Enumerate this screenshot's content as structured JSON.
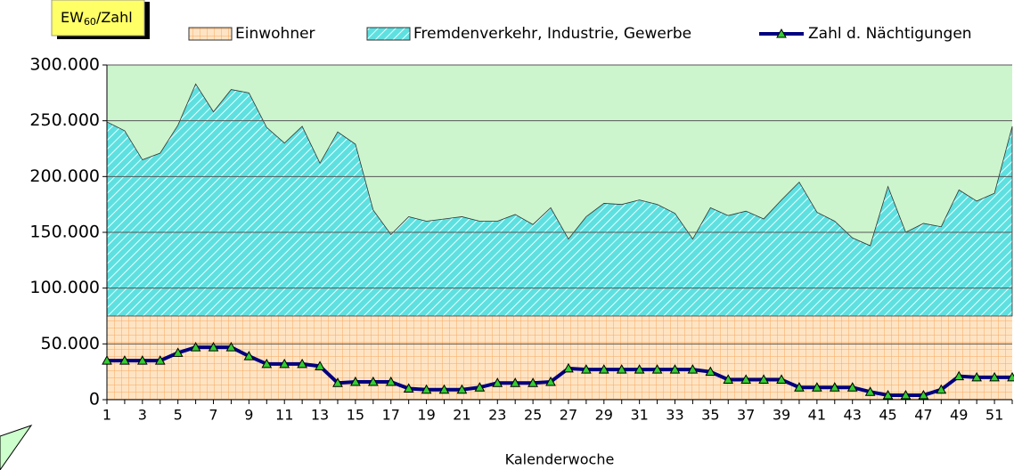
{
  "chart_data": {
    "type": "stacked-area-line",
    "y_label": {
      "main": "EW",
      "sub": "60",
      "tail": "/Zahl"
    },
    "x_label": "Kalenderwoche",
    "categories": [
      "1",
      null,
      "3",
      null,
      "5",
      null,
      "7",
      null,
      "9",
      null,
      "11",
      null,
      "13",
      null,
      "15",
      null,
      "17",
      null,
      "19",
      null,
      "21",
      null,
      "23",
      null,
      "25",
      null,
      "27",
      null,
      "29",
      null,
      "31",
      null,
      "33",
      null,
      "35",
      null,
      "37",
      null,
      "39",
      null,
      "41",
      null,
      "43",
      null,
      "45",
      null,
      "47",
      null,
      "49",
      null,
      "51",
      null
    ],
    "series": [
      {
        "name": "Einwohner",
        "color": "#ffd9b3",
        "kind": "area",
        "values": [
          75000,
          75000,
          75000,
          75000,
          75000,
          75000,
          75000,
          75000,
          75000,
          75000,
          75000,
          75000,
          75000,
          75000,
          75000,
          75000,
          75000,
          75000,
          75000,
          75000,
          75000,
          75000,
          75000,
          75000,
          75000,
          75000,
          75000,
          75000,
          75000,
          75000,
          75000,
          75000,
          75000,
          75000,
          75000,
          75000,
          75000,
          75000,
          75000,
          75000,
          75000,
          75000,
          75000,
          75000,
          75000,
          75000,
          75000,
          75000,
          75000,
          75000,
          75000,
          75000
        ]
      },
      {
        "name": "Fremdenverkehr, Industrie, Gewerbe",
        "color": "#5ee0e0",
        "kind": "area",
        "values": [
          174000,
          166000,
          140000,
          146000,
          171000,
          208000,
          183000,
          203000,
          200000,
          169000,
          155000,
          170000,
          137000,
          165000,
          154000,
          95000,
          73000,
          89000,
          85000,
          87000,
          89000,
          85000,
          85000,
          91000,
          82000,
          97000,
          69000,
          89000,
          101000,
          100000,
          104000,
          100000,
          92000,
          69000,
          97000,
          90000,
          94000,
          87000,
          104000,
          120000,
          93000,
          85000,
          70000,
          63000,
          116000,
          75000,
          83000,
          80000,
          113000,
          103000,
          110000,
          170000
        ]
      },
      {
        "name": "Zahl d. Nächtigungen",
        "color": "#000080",
        "kind": "line",
        "values": [
          35000,
          35000,
          35000,
          35000,
          42000,
          47000,
          47000,
          47000,
          39000,
          32000,
          32000,
          32000,
          30000,
          15000,
          16000,
          16000,
          16000,
          10000,
          9000,
          9000,
          9000,
          11000,
          15000,
          15000,
          15000,
          16000,
          28000,
          27000,
          27000,
          27000,
          27000,
          27000,
          27000,
          27000,
          25000,
          18000,
          18000,
          18000,
          18000,
          11000,
          11000,
          11000,
          11000,
          7000,
          4000,
          4000,
          4000,
          9000,
          21000,
          20000,
          20000,
          20000
        ]
      }
    ],
    "ylim": [
      0,
      300000
    ],
    "yticks": [
      0,
      {
        "value": 50000,
        "label": "50.000"
      },
      {
        "value": 100000,
        "label": "100.000"
      },
      {
        "value": 150000,
        "label": "150.000"
      },
      {
        "value": 200000,
        "label": "200.000"
      },
      {
        "value": 250000,
        "label": "250.000"
      },
      {
        "value": 300000,
        "label": "300.000"
      }
    ],
    "grid": true,
    "legend": "top",
    "background": "#cdf5cd"
  }
}
